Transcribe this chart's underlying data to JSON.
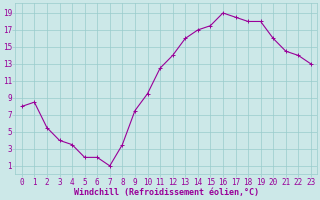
{
  "x": [
    0,
    1,
    2,
    3,
    4,
    5,
    6,
    7,
    8,
    9,
    10,
    11,
    12,
    13,
    14,
    15,
    16,
    17,
    18,
    19,
    20,
    21,
    22,
    23
  ],
  "y": [
    8,
    8.5,
    5.5,
    4,
    3.5,
    2,
    2,
    1,
    3.5,
    7.5,
    9.5,
    12.5,
    14,
    16,
    17,
    17.5,
    19,
    18.5,
    18,
    18,
    16,
    14.5,
    14,
    13
  ],
  "line_color": "#990099",
  "marker_color": "#990099",
  "bg_color": "#cce8e8",
  "grid_color": "#99cccc",
  "xlabel": "Windchill (Refroidissement éolien,°C)",
  "xlabel_color": "#990099",
  "xlabel_fontsize": 6,
  "ytick_labels": [
    "1",
    "3",
    "5",
    "7",
    "9",
    "11",
    "13",
    "15",
    "17",
    "19"
  ],
  "ytick_values": [
    1,
    3,
    5,
    7,
    9,
    11,
    13,
    15,
    17,
    19
  ],
  "xtick_labels": [
    "0",
    "1",
    "2",
    "3",
    "4",
    "5",
    "6",
    "7",
    "8",
    "9",
    "10",
    "11",
    "12",
    "13",
    "14",
    "15",
    "16",
    "17",
    "18",
    "19",
    "20",
    "21",
    "22",
    "23"
  ],
  "xlim": [
    -0.5,
    23.5
  ],
  "ylim": [
    0,
    20.2
  ],
  "tick_fontsize": 5.5,
  "line_width": 0.8,
  "marker_size": 2.5,
  "marker_style": "+"
}
